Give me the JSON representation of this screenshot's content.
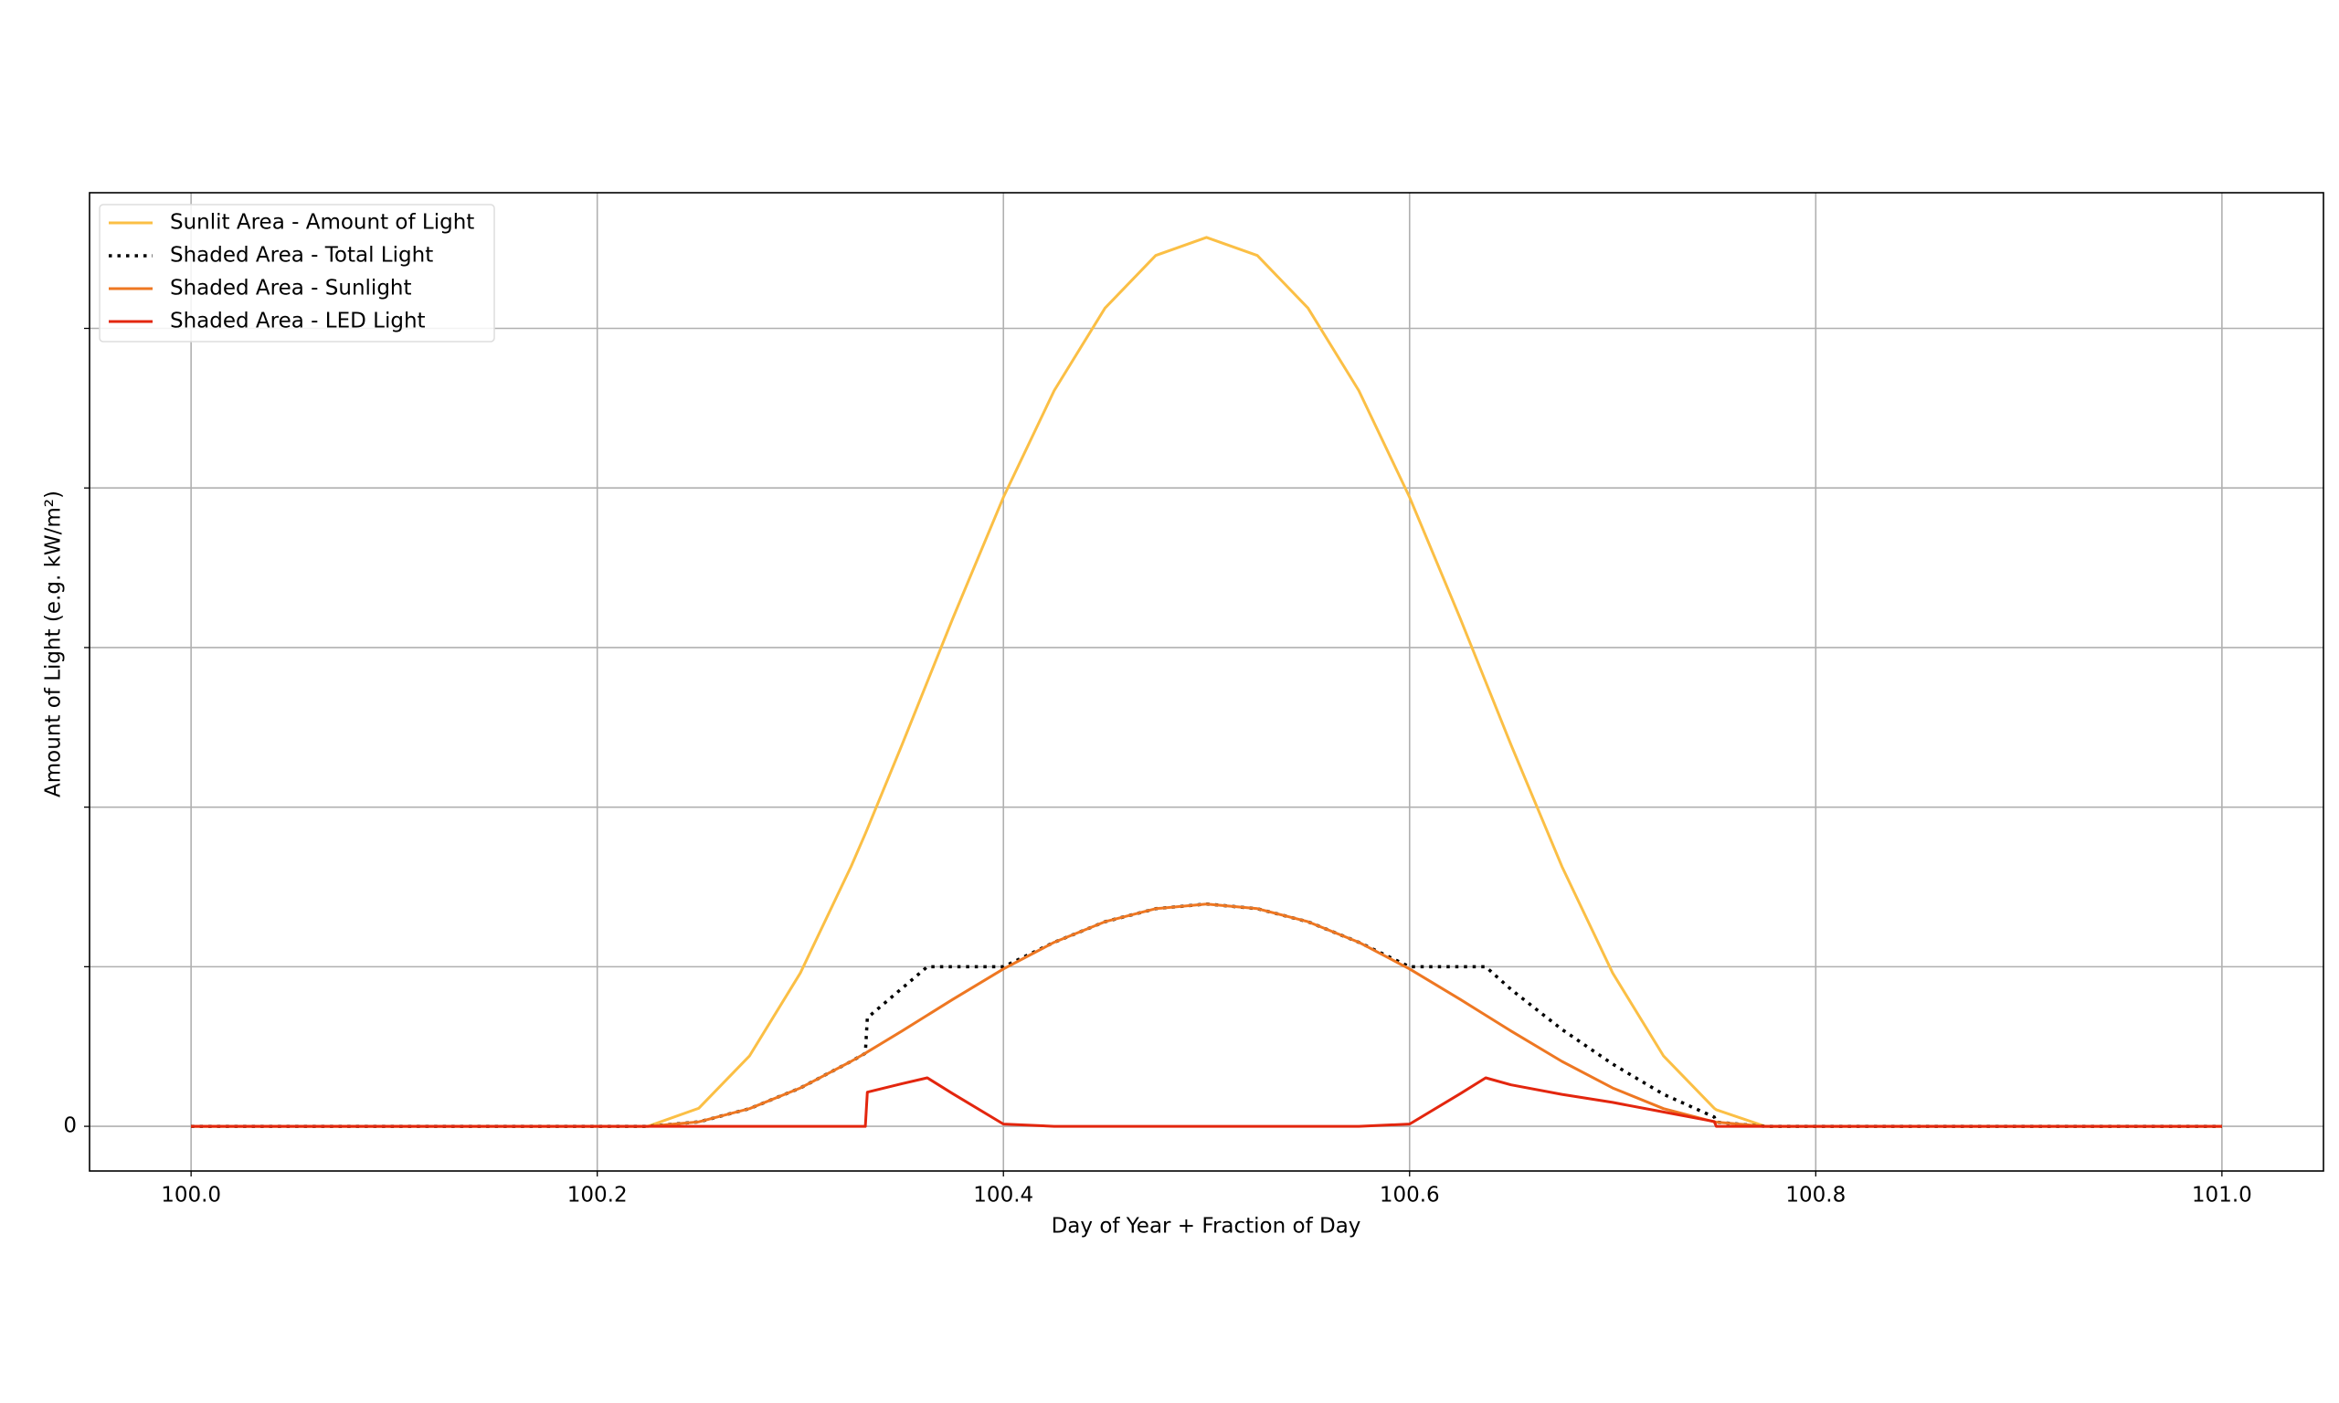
{
  "chart_data": {
    "type": "line",
    "x_label": "Day of Year + Fraction of Day",
    "y_label": "Amount of Light (e.g. kW/m²)",
    "x": [
      100.0,
      100.2,
      100.225,
      100.25,
      100.275,
      100.3,
      100.325,
      100.332,
      100.333,
      100.35,
      100.3625,
      100.375,
      100.4,
      100.425,
      100.45,
      100.475,
      100.5,
      100.525,
      100.55,
      100.575,
      100.6,
      100.625,
      100.6375,
      100.65,
      100.675,
      100.7,
      100.725,
      100.75,
      100.751,
      100.775,
      100.8,
      101.0
    ],
    "series": [
      {
        "name": "Sunlit Area - Amount of Light",
        "color": "#fbbf45",
        "style": "solid",
        "values": [
          0,
          0,
          0,
          0.113,
          0.442,
          0.961,
          1.628,
          1.834,
          1.864,
          2.389,
          2.785,
          3.181,
          3.942,
          4.61,
          5.127,
          5.457,
          5.57,
          5.457,
          5.127,
          4.61,
          3.942,
          3.181,
          2.785,
          2.389,
          1.628,
          0.961,
          0.442,
          0.113,
          0.104,
          0,
          0,
          0
        ]
      },
      {
        "name": "Shaded Area - Total Light",
        "color": "#000000",
        "style": "dotted",
        "values": [
          0,
          0,
          0,
          0.028,
          0.111,
          0.24,
          0.407,
          0.458,
          0.68,
          0.864,
          1.0,
          1.0,
          1.0,
          1.153,
          1.282,
          1.364,
          1.393,
          1.364,
          1.282,
          1.153,
          1.0,
          1.0,
          1.0,
          0.857,
          0.607,
          0.39,
          0.201,
          0.058,
          0.026,
          0,
          0,
          0
        ]
      },
      {
        "name": "Shaded Area - Sunlight",
        "color": "#ee7722",
        "style": "solid",
        "values": [
          0,
          0,
          0,
          0.028,
          0.111,
          0.24,
          0.407,
          0.458,
          0.466,
          0.597,
          0.696,
          0.795,
          0.986,
          1.153,
          1.282,
          1.364,
          1.393,
          1.364,
          1.282,
          1.153,
          0.986,
          0.795,
          0.696,
          0.597,
          0.407,
          0.24,
          0.111,
          0.028,
          0.026,
          0,
          0,
          0
        ]
      },
      {
        "name": "Shaded Area - LED Light",
        "color": "#e3260e",
        "style": "solid",
        "values": [
          0,
          0,
          0,
          0,
          0,
          0,
          0,
          0,
          0.214,
          0.267,
          0.304,
          0.205,
          0.014,
          0,
          0,
          0,
          0,
          0,
          0,
          0,
          0.014,
          0.205,
          0.304,
          0.26,
          0.2,
          0.15,
          0.09,
          0.03,
          0,
          0,
          0,
          0
        ]
      }
    ],
    "xlim": [
      99.95,
      101.05
    ],
    "xticks": [
      {
        "value": 100,
        "label": "100.0"
      },
      100.2,
      100.4,
      100.6,
      100.8,
      {
        "value": 101,
        "label": "101.0"
      }
    ],
    "ylim": [
      -0.28,
      5.85
    ],
    "yticks": [
      0,
      {
        "value": 1,
        "label": null
      },
      {
        "value": 2,
        "label": null
      },
      {
        "value": 3,
        "label": null
      },
      {
        "value": 4,
        "label": null
      },
      {
        "value": 5,
        "label": null
      }
    ],
    "grid": true,
    "legend": "upper left"
  }
}
